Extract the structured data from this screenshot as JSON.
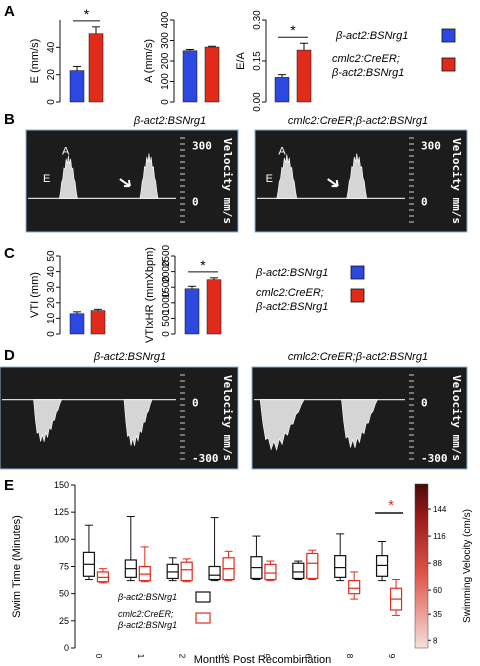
{
  "colors": {
    "blue": "#2c48e0",
    "red": "#e02a1a",
    "black": "#111111",
    "echo_bg": "#1c1c1c",
    "echo_frame": "#8ab0d8",
    "white": "#ffffff"
  },
  "panels": {
    "A": {
      "label": "A",
      "legend": {
        "line1": "β-act2:BSNrg1",
        "line2a": "cmlc2:CreER;",
        "line2b": "β-act2:BSNrg1"
      }
    },
    "B": {
      "label": "B",
      "titles": [
        "β-act2:BSNrg1",
        "cmlc2:CreER;β-act2:BSNrg1"
      ],
      "scale_top": "300",
      "scale_zero": "0",
      "velocity": "Velocity mm/s",
      "wave_labels": {
        "A": "A",
        "E": "E"
      }
    },
    "C": {
      "label": "C",
      "legend": {
        "line1": "β-act2:BSNrg1",
        "line2a": "cmlc2:CreER;",
        "line2b": "β-act2:BSNrg1"
      }
    },
    "D": {
      "label": "D",
      "titles": [
        "β-act2:BSNrg1",
        "cmlc2:CreER;β-act2:BSNrg1"
      ],
      "scale_zero": "0",
      "scale_bottom": "-300",
      "velocity": "Velocity mm/s"
    },
    "E": {
      "label": "E",
      "legend": {
        "line1": "β-act2:BSNrg1",
        "line2a": "cmlc2:CreER;",
        "line2b": "β-act2:BSNrg1"
      }
    }
  },
  "chart_data": [
    {
      "id": "A-E",
      "type": "bar",
      "ylabel": "E (mm/s)",
      "ylim": [
        0,
        60
      ],
      "yticks": [
        0,
        20,
        40
      ],
      "series": [
        {
          "name": "β-act2:BSNrg1",
          "value": 23,
          "err": 3
        },
        {
          "name": "cmlc2:CreER;β-act2:BSNrg1",
          "value": 50,
          "err": 5
        }
      ],
      "significance": "*"
    },
    {
      "id": "A-A",
      "type": "bar",
      "ylabel": "A (mm/s)",
      "ylim": [
        0,
        400
      ],
      "yticks": [
        0,
        100,
        200,
        300,
        400
      ],
      "series": [
        {
          "name": "β-act2:BSNrg1",
          "value": 250,
          "err": 6
        },
        {
          "name": "cmlc2:CreER;β-act2:BSNrg1",
          "value": 268,
          "err": 4
        }
      ]
    },
    {
      "id": "A-EA",
      "type": "bar",
      "ylabel": "E/A",
      "ylim": [
        0,
        0.3
      ],
      "yticks": [
        "0.00",
        "0.15",
        "0.30"
      ],
      "series": [
        {
          "name": "β-act2:BSNrg1",
          "value": 0.09,
          "err": 0.01
        },
        {
          "name": "cmlc2:CreER;β-act2:BSNrg1",
          "value": 0.19,
          "err": 0.025
        }
      ],
      "significance": "*"
    },
    {
      "id": "C-VTI",
      "type": "bar",
      "ylabel": "VTI (mm)",
      "ylim": [
        0,
        50
      ],
      "yticks": [
        0,
        10,
        20,
        30,
        40,
        50
      ],
      "series": [
        {
          "name": "β-act2:BSNrg1",
          "value": 13,
          "err": 1.2
        },
        {
          "name": "cmlc2:CreER;β-act2:BSNrg1",
          "value": 15,
          "err": 0.8
        }
      ]
    },
    {
      "id": "C-VTIxHR",
      "type": "bar",
      "ylabel": "VTIxHR (mmXbpm)",
      "ylim": [
        0,
        2500
      ],
      "yticks": [
        0,
        500,
        1000,
        1500,
        2000,
        2500
      ],
      "series": [
        {
          "name": "β-act2:BSNrg1",
          "value": 1450,
          "err": 80
        },
        {
          "name": "cmlc2:CreER;β-act2:BSNrg1",
          "value": 1740,
          "err": 60
        }
      ],
      "significance": "*"
    },
    {
      "id": "E-swim",
      "type": "box",
      "xlabel": "Months Post Recombination",
      "ylabel": "Swim Time (Minutes)",
      "ylim": [
        0,
        150
      ],
      "yticks": [
        0,
        25,
        50,
        75,
        100,
        125,
        150
      ],
      "categories": [
        "0",
        "1",
        "2",
        "3",
        "5",
        "6",
        "8",
        "9"
      ],
      "series": [
        {
          "name": "β-act2:BSNrg1",
          "boxes": [
            {
              "min": 63,
              "q1": 66,
              "median": 77,
              "q3": 88,
              "max": 113
            },
            {
              "min": 62,
              "q1": 65,
              "median": 73,
              "q3": 81,
              "max": 121
            },
            {
              "min": 62,
              "q1": 64,
              "median": 70,
              "q3": 77,
              "max": 83
            },
            {
              "min": 62,
              "q1": 63,
              "median": 67,
              "q3": 75,
              "max": 120
            },
            {
              "min": 63,
              "q1": 64,
              "median": 74,
              "q3": 84,
              "max": 103
            },
            {
              "min": 63,
              "q1": 64,
              "median": 70,
              "q3": 78,
              "max": 80
            },
            {
              "min": 62,
              "q1": 65,
              "median": 74,
              "q3": 85,
              "max": 105
            },
            {
              "min": 62,
              "q1": 66,
              "median": 76,
              "q3": 85,
              "max": 98
            }
          ]
        },
        {
          "name": "cmlc2:CreER;β-act2:BSNrg1",
          "boxes": [
            {
              "min": 60,
              "q1": 61,
              "median": 65,
              "q3": 70,
              "max": 73
            },
            {
              "min": 61,
              "q1": 62,
              "median": 68,
              "q3": 75,
              "max": 93
            },
            {
              "min": 61,
              "q1": 62,
              "median": 72,
              "q3": 79,
              "max": 82
            },
            {
              "min": 62,
              "q1": 63,
              "median": 73,
              "q3": 83,
              "max": 89
            },
            {
              "min": 62,
              "q1": 63,
              "median": 69,
              "q3": 77,
              "max": 80
            },
            {
              "min": 63,
              "q1": 64,
              "median": 78,
              "q3": 87,
              "max": 90
            },
            {
              "min": 45,
              "q1": 50,
              "median": 55,
              "q3": 62,
              "max": 70
            },
            {
              "min": 30,
              "q1": 35,
              "median": 45,
              "q3": 55,
              "max": 63
            }
          ]
        }
      ],
      "significance": {
        "label": "*",
        "category": "9"
      },
      "colorbar": {
        "label": "Swimming Velocity (cm/s)",
        "ticks": [
          8,
          35,
          60,
          88,
          116,
          144
        ]
      }
    }
  ]
}
